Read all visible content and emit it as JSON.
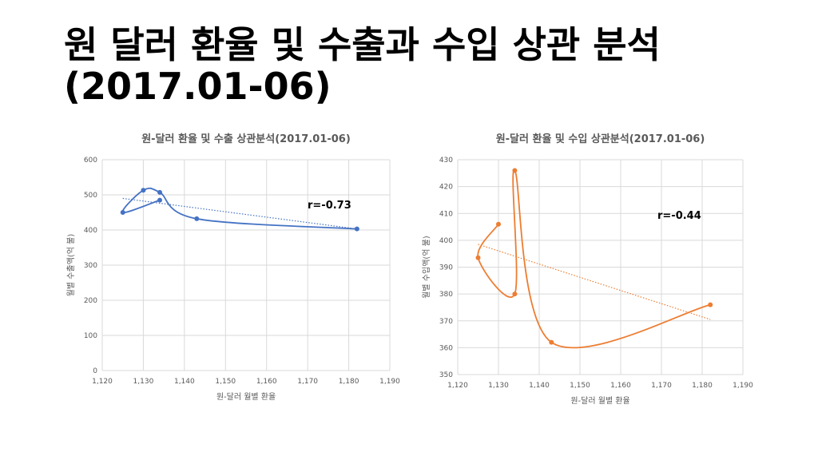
{
  "slide": {
    "title_line1": "원 달러 환율 및 수출과 수입 상관 분석",
    "title_line2": "(2017.01-06)"
  },
  "chart_data": [
    {
      "type": "scatter",
      "title": "원-달러 환율 및 수출 상관분석(2017.01-06)",
      "xlabel": "원-달러 월별 환율",
      "ylabel": "월별 수출액(억 불)",
      "xlim": [
        1120,
        1190
      ],
      "ylim": [
        0,
        600
      ],
      "x_ticks": [
        "1,120",
        "1,130",
        "1,140",
        "1,150",
        "1,160",
        "1,170",
        "1,180",
        "1,190"
      ],
      "y_ticks": [
        "0",
        "100",
        "200",
        "300",
        "400",
        "500",
        "600"
      ],
      "color": "#4472C4",
      "grid": true,
      "smoothed_line": true,
      "trendline": {
        "type": "linear",
        "x_range": [
          1125,
          1182
        ],
        "y_range": [
          490,
          403
        ]
      },
      "annotation": "r=-0.73",
      "x": [
        1134,
        1125,
        1130,
        1134,
        1143,
        1182
      ],
      "y": [
        485,
        450,
        513,
        507,
        432,
        403
      ]
    },
    {
      "type": "scatter",
      "title": "원-달러 환율 및 수입 상관분석(2017.01-06)",
      "xlabel": "원-달러 월별 환율",
      "ylabel": "월별 수입액(억 불)",
      "xlim": [
        1120,
        1190
      ],
      "ylim": [
        350,
        430
      ],
      "x_ticks": [
        "1,120",
        "1,130",
        "1,140",
        "1,150",
        "1,160",
        "1,170",
        "1,180",
        "1,190"
      ],
      "y_ticks": [
        "350",
        "360",
        "370",
        "380",
        "390",
        "400",
        "410",
        "420",
        "430"
      ],
      "color": "#ED7D31",
      "grid": true,
      "smoothed_line": true,
      "trendline": {
        "type": "linear",
        "x_range": [
          1125,
          1182
        ],
        "y_range": [
          398.5,
          370.5
        ]
      },
      "annotation": "r=-0.44",
      "x": [
        1130,
        1125,
        1134,
        1134,
        1143,
        1182
      ],
      "y": [
        406,
        393.5,
        380,
        426,
        362,
        376
      ]
    }
  ]
}
